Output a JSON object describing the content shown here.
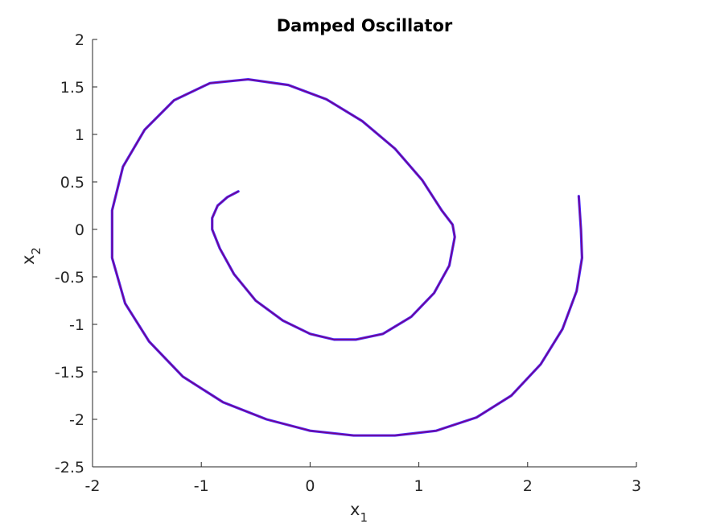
{
  "chart_data": {
    "type": "line",
    "title": "Damped Oscillator",
    "xlabel": {
      "main": "x",
      "sub": "1"
    },
    "ylabel": {
      "main": "x",
      "sub": "2"
    },
    "xlim": [
      -2,
      3
    ],
    "ylim": [
      -2.5,
      2
    ],
    "xticks": [
      -2,
      -1,
      0,
      1,
      2,
      3
    ],
    "yticks": [
      2,
      1.5,
      1,
      0.5,
      0,
      -0.5,
      -1,
      -1.5,
      -2,
      -2.5
    ],
    "xtick_labels": [
      "-2",
      "-1",
      "0",
      "1",
      "2",
      "3"
    ],
    "ytick_labels": [
      "2",
      "1.5",
      "1",
      "0.5",
      "0",
      "-0.5",
      "-1",
      "-1.5",
      "-2",
      "-2.5"
    ],
    "grid": false,
    "series": [
      {
        "color": "#7a0080",
        "marker_color": "#4b2cff",
        "x": [
          2.47,
          2.49,
          2.5,
          2.45,
          2.32,
          2.12,
          1.85,
          1.53,
          1.16,
          0.78,
          0.4,
          0.0,
          -0.4,
          -0.8,
          -1.17,
          -1.48,
          -1.7,
          -1.82,
          -1.82,
          -1.72,
          -1.52,
          -1.25,
          -0.92,
          -0.57,
          -0.2,
          0.15,
          0.48,
          0.78,
          1.03,
          1.21,
          1.31,
          1.33,
          1.28,
          1.14,
          0.93,
          0.67,
          0.42,
          0.22,
          0.0,
          -0.25,
          -0.5,
          -0.7,
          -0.83,
          -0.9,
          -0.9,
          -0.85,
          -0.76,
          -0.66
        ],
        "y": [
          0.35,
          0.0,
          -0.3,
          -0.65,
          -1.05,
          -1.42,
          -1.75,
          -1.98,
          -2.12,
          -2.17,
          -2.17,
          -2.12,
          -2.0,
          -1.82,
          -1.55,
          -1.18,
          -0.78,
          -0.3,
          0.2,
          0.66,
          1.05,
          1.36,
          1.54,
          1.58,
          1.52,
          1.37,
          1.14,
          0.85,
          0.52,
          0.2,
          0.05,
          -0.08,
          -0.38,
          -0.67,
          -0.92,
          -1.1,
          -1.16,
          -1.16,
          -1.1,
          -0.96,
          -0.75,
          -0.47,
          -0.2,
          0.0,
          0.12,
          0.25,
          0.34,
          0.4
        ]
      }
    ]
  }
}
